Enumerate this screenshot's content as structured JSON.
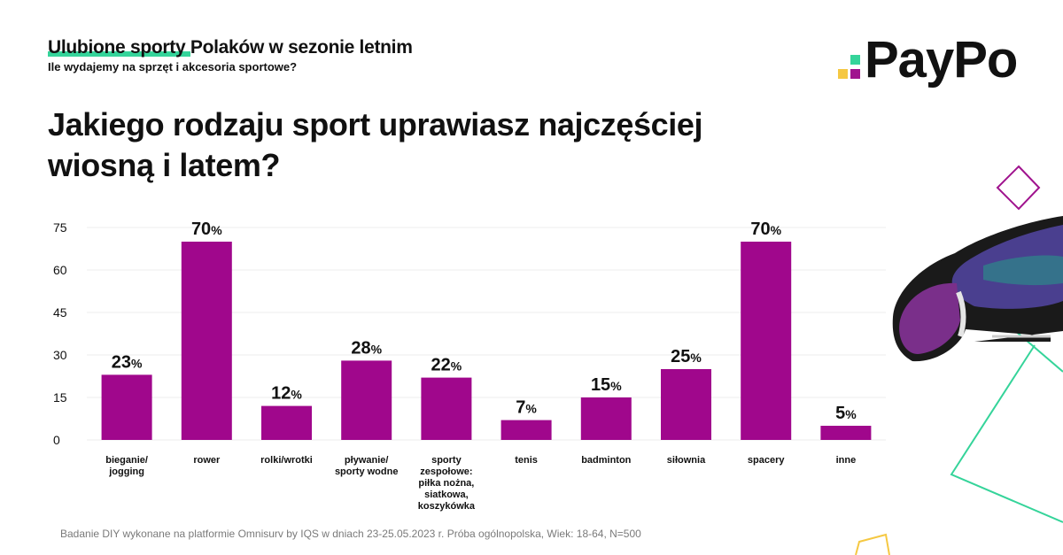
{
  "header": {
    "title_highlight": "Ulubione sporty",
    "title_rest": " Polaków w sezonie letnim",
    "subtitle": "Ile wydajemy na sprzęt i akcesoria sportowe?"
  },
  "question": "Jakiego rodzaju sport uprawiasz najczęściej wiosną i latem?",
  "logo": {
    "text": "PayPo",
    "colors": {
      "green": "#35d49a",
      "purple": "#a0138e",
      "yellow": "#f5c842"
    }
  },
  "footer": "Badanie DIY wykonane na platformie Omnisurv by IQS w dniach 23-25.05.2023 r. Próba ogólnopolska, Wiek: 18-64, N=500",
  "chart_data": {
    "type": "bar",
    "title": "Jakiego rodzaju sport uprawiasz najczęściej wiosną i latem?",
    "xlabel": "",
    "ylabel": "",
    "ylim": [
      0,
      75
    ],
    "yticks": [
      0,
      15,
      30,
      45,
      60,
      75
    ],
    "grid": true,
    "legend": "none",
    "bar_color": "#a0078c",
    "categories": [
      [
        "bieganie/",
        "jogging"
      ],
      [
        "rower"
      ],
      [
        "rolki/wrotki"
      ],
      [
        "pływanie/",
        "sporty wodne"
      ],
      [
        "sporty",
        "zespołowe:",
        "piłka nożna,",
        "siatkowa,",
        "koszykówka"
      ],
      [
        "tenis"
      ],
      [
        "badminton"
      ],
      [
        "siłownia"
      ],
      [
        "spacery"
      ],
      [
        "inne"
      ]
    ],
    "values": [
      23,
      70,
      12,
      28,
      22,
      7,
      15,
      25,
      70,
      5
    ],
    "value_unit": "%"
  }
}
